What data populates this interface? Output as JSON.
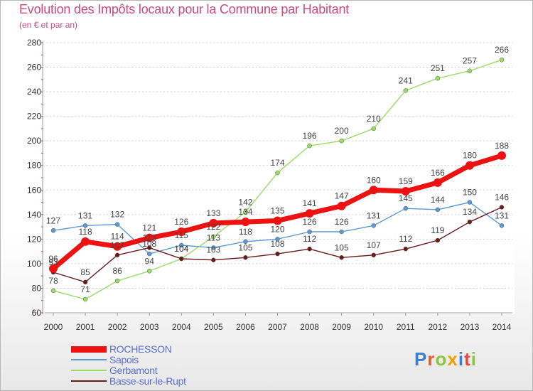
{
  "title": "Evolution des Impôts locaux pour la Commune par Habitant",
  "subtitle": "(en € et par an)",
  "logo": {
    "text": "Proxiti",
    "colors": [
      "#3a7fd0",
      "#e85a2a",
      "#8cc63f",
      "#f0a000",
      "#3a7fd0",
      "#e8463a",
      "#8cc63f"
    ]
  },
  "chart_data": {
    "type": "line",
    "x": [
      "2000",
      "2001",
      "2002",
      "2003",
      "2004",
      "2005",
      "2006",
      "2007",
      "2008",
      "2009",
      "2010",
      "2011",
      "2012",
      "2013",
      "2014"
    ],
    "ylim": [
      60,
      280
    ],
    "yticks": [
      "60",
      "80",
      "100",
      "120",
      "140",
      "160",
      "180",
      "200",
      "220",
      "240",
      "260",
      "280"
    ],
    "grid": "horizontal dotted",
    "legend_position": "bottom-left",
    "series": [
      {
        "name": "ROCHESSON",
        "color": "#ee1111",
        "values": [
          96,
          118,
          114,
          121,
          126,
          133,
          134,
          135,
          141,
          147,
          160,
          159,
          166,
          180,
          188
        ]
      },
      {
        "name": "Sapois",
        "color": "#5b9bd5",
        "values": [
          127,
          131,
          132,
          108,
          115,
          113,
          118,
          120,
          126,
          126,
          131,
          145,
          144,
          150,
          131
        ]
      },
      {
        "name": "Gerbamont",
        "color": "#99dd66",
        "values": [
          78,
          71,
          86,
          94,
          104,
          122,
          142,
          174,
          196,
          200,
          210,
          241,
          251,
          257,
          266
        ]
      },
      {
        "name": "Basse-sur-le-Rupt",
        "color": "#6b1a1a",
        "values": [
          93,
          85,
          107,
          113,
          104,
          103,
          105,
          108,
          112,
          105,
          107,
          112,
          119,
          134,
          146
        ]
      }
    ]
  }
}
